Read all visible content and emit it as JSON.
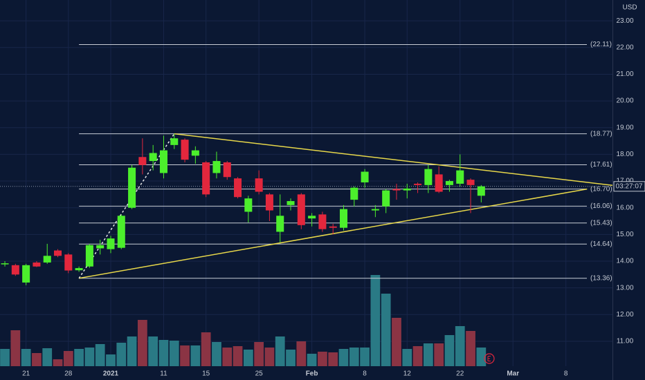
{
  "chart_data": {
    "type": "candlestick",
    "currency": "USD",
    "countdown": "03:27:07",
    "xlim": [
      -0.46,
      57.4
    ],
    "ylim": [
      9.55,
      23.78
    ],
    "vlim": [
      0,
      150
    ],
    "xticks": [
      {
        "value": 2,
        "label": "21"
      },
      {
        "value": 6,
        "label": "28"
      },
      {
        "value": 10,
        "label": "2021"
      },
      {
        "value": 15,
        "label": "11"
      },
      {
        "value": 19,
        "label": "15"
      },
      {
        "value": 24,
        "label": "25"
      },
      {
        "value": 29,
        "label": "Feb"
      },
      {
        "value": 34,
        "label": "8"
      },
      {
        "value": 38,
        "label": "12"
      },
      {
        "value": 43,
        "label": "22"
      },
      {
        "value": 48,
        "label": "Mar"
      },
      {
        "value": 53,
        "label": "8"
      }
    ],
    "yticks": [
      {
        "value": 11,
        "label": "11.00"
      },
      {
        "value": 12,
        "label": "12.00"
      },
      {
        "value": 13,
        "label": "13.00"
      },
      {
        "value": 14,
        "label": "14.00"
      },
      {
        "value": 15,
        "label": "15.00"
      },
      {
        "value": 16,
        "label": "16.00"
      },
      {
        "value": 17,
        "label": "17.00"
      },
      {
        "value": 18,
        "label": "18.00"
      },
      {
        "value": 19,
        "label": "19.00"
      },
      {
        "value": 20,
        "label": "20.00"
      },
      {
        "value": 21,
        "label": "21.00"
      },
      {
        "value": 22,
        "label": "22.00"
      },
      {
        "value": 23,
        "label": "23.00"
      }
    ],
    "grid": true,
    "up_color": "#4cef2c",
    "down_color": "#e3273d",
    "volume_up_color": "#2a7a85",
    "volume_down_color": "#8b3444",
    "open": [
      13.88,
      13.85,
      13.2,
      13.95,
      13.95,
      14.4,
      14.25,
      13.66,
      13.8,
      14.48,
      14.45,
      14.5,
      16.0,
      17.9,
      17.75,
      17.3,
      18.35,
      18.55,
      17.95,
      17.7,
      17.3,
      17.7,
      17.1,
      15.85,
      17.1,
      16.5,
      15.1,
      16.1,
      16.5,
      15.6,
      15.75,
      15.3,
      15.25,
      16.3,
      16.95,
      15.9,
      16.05,
      16.7,
      16.65,
      16.9,
      16.85,
      17.25,
      16.85,
      16.9,
      17.05,
      16.45
    ],
    "high": [
      14.0,
      13.9,
      13.9,
      14.0,
      14.65,
      14.45,
      14.3,
      13.8,
      14.65,
      14.8,
      14.95,
      15.75,
      17.6,
      18.6,
      18.35,
      18.7,
      18.77,
      18.6,
      18.3,
      17.75,
      18.1,
      17.75,
      17.15,
      16.45,
      17.4,
      16.55,
      16.5,
      16.35,
      16.55,
      15.8,
      15.85,
      15.4,
      16.1,
      16.8,
      17.45,
      16.1,
      16.7,
      16.9,
      16.9,
      16.95,
      17.6,
      17.55,
      17.05,
      18.0,
      17.1,
      16.85
    ],
    "low": [
      13.8,
      13.45,
      13.1,
      13.78,
      13.9,
      14.15,
      13.55,
      13.6,
      13.75,
      14.25,
      14.3,
      14.45,
      15.95,
      17.25,
      17.4,
      17.1,
      18.2,
      17.7,
      17.65,
      16.4,
      17.1,
      17.05,
      16.35,
      15.45,
      16.5,
      15.5,
      14.7,
      15.9,
      15.2,
      15.3,
      15.1,
      15.0,
      15.15,
      16.05,
      16.75,
      15.65,
      15.8,
      16.3,
      16.35,
      16.55,
      16.55,
      16.55,
      16.6,
      16.8,
      15.8,
      16.2
    ],
    "close": [
      13.92,
      13.5,
      13.85,
      13.8,
      14.2,
      14.2,
      13.65,
      13.74,
      14.6,
      14.6,
      14.85,
      15.7,
      17.5,
      17.6,
      18.05,
      18.15,
      18.6,
      17.8,
      18.15,
      16.5,
      17.75,
      17.15,
      16.4,
      16.35,
      16.6,
      15.9,
      15.7,
      16.25,
      15.35,
      15.7,
      15.2,
      15.25,
      15.95,
      16.75,
      17.35,
      15.95,
      16.65,
      16.65,
      16.72,
      16.85,
      17.45,
      16.6,
      17.0,
      17.4,
      16.85,
      16.8
    ],
    "volume": [
      25,
      52,
      25,
      19,
      26,
      10,
      22,
      25,
      27,
      32,
      17,
      34,
      43,
      67,
      43,
      38,
      37,
      30,
      30,
      49,
      35,
      27,
      29,
      24,
      35,
      27,
      43,
      24,
      36,
      18,
      21,
      20,
      25,
      27,
      27,
      132,
      105,
      70,
      25,
      29,
      33,
      33,
      45,
      58,
      51,
      27
    ],
    "levels": {
      "values": [
        22.11,
        18.77,
        17.61,
        16.7,
        16.06,
        15.43,
        14.64,
        13.36
      ],
      "value_labels": [
        "(22.11)",
        "(18.77)",
        "(17.61)",
        "(16.70)",
        "(16.06)",
        "(15.43)",
        "(14.64)",
        "(13.36)"
      ]
    },
    "trendlines": [
      {
        "points": [
          [
            7,
            13.36
          ],
          [
            55,
            16.7
          ]
        ],
        "color": "#e8d84a"
      },
      {
        "points": [
          [
            16,
            18.77
          ],
          [
            57.4,
            16.84
          ]
        ],
        "color": "#e8d84a"
      },
      {
        "points": [
          [
            7,
            13.36
          ],
          [
            16,
            18.77
          ]
        ],
        "color": "#e8e8e8",
        "dashed": true
      }
    ]
  }
}
